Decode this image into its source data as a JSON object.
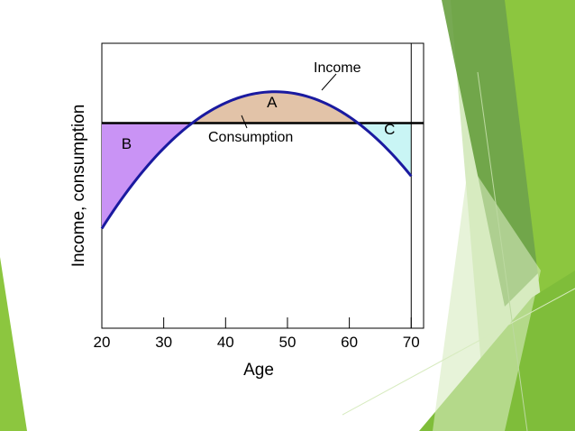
{
  "chart_data": {
    "type": "area",
    "xlabel": "Age",
    "ylabel": "Income, consumption",
    "xlim": [
      20,
      72
    ],
    "ylim": [
      0,
      10
    ],
    "x_ticks": [
      20,
      30,
      40,
      50,
      60,
      70
    ],
    "x_tick_labels": [
      "20",
      "30",
      "40",
      "50",
      "60",
      "70"
    ],
    "retirement_age": 70,
    "consumption_level": 7.2,
    "income_curve": {
      "peak_age": 48,
      "peak_value": 8.3,
      "age_20_value": 3.5
    },
    "series": [
      {
        "name": "Income",
        "color": "#1a1aa0"
      },
      {
        "name": "Consumption",
        "color": "#000000"
      }
    ],
    "regions": [
      {
        "label": "A",
        "range": [
          35,
          61
        ],
        "color": "#e2c3a8"
      },
      {
        "label": "B",
        "range": [
          20,
          35
        ],
        "color": "#c993f5"
      },
      {
        "label": "C",
        "range": [
          61,
          70
        ],
        "color": "#c9f5f5"
      }
    ],
    "annotations": [
      {
        "text": "Income"
      },
      {
        "text": "Consumption"
      },
      {
        "text": "A"
      },
      {
        "text": "B"
      },
      {
        "text": "C"
      }
    ]
  },
  "theme": {
    "accent_colors": [
      "#8cc63f",
      "#6aa83a",
      "#c5e1a5"
    ]
  }
}
